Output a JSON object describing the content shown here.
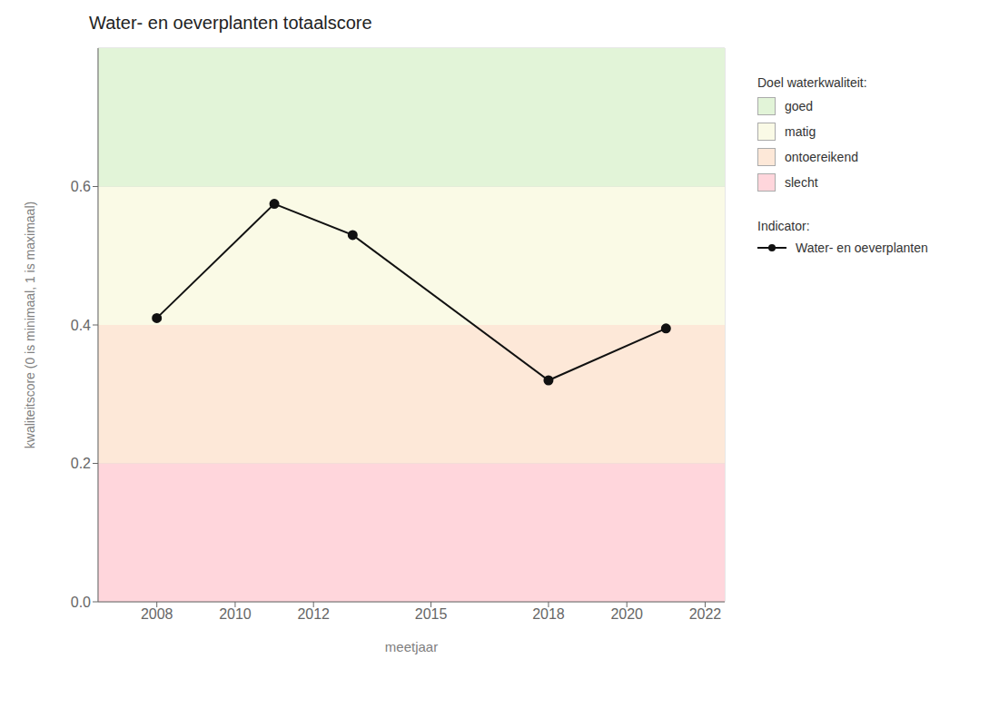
{
  "chart_data": {
    "type": "line",
    "title": "Water- en oeverplanten totaalscore",
    "x_label": "meetjaar",
    "y_label": "kwaliteitscore (0 is minimaal, 1 is maximaal)",
    "x": [
      2008,
      2011,
      2013,
      2018,
      2021
    ],
    "series": [
      {
        "name": "Water- en oeverplanten",
        "color": "#111111",
        "marker": "o",
        "values": [
          0.41,
          0.575,
          0.53,
          0.32,
          0.395
        ]
      }
    ],
    "xlim": [
      2006.5,
      2022.5
    ],
    "ylim": [
      0.0,
      0.8
    ],
    "xticks": [
      2008,
      2010,
      2012,
      2015,
      2018,
      2020,
      2022
    ],
    "yticks": [
      {
        "value": 0.0,
        "label": "0.0"
      },
      {
        "value": 0.2,
        "label": "0.2"
      },
      {
        "value": 0.4,
        "label": "0.4"
      },
      {
        "value": 0.6,
        "label": "0.6"
      }
    ],
    "bands": [
      {
        "from": 0.0,
        "to": 0.2,
        "color": "#ffd6dc",
        "label": "slecht"
      },
      {
        "from": 0.2,
        "to": 0.4,
        "color": "#fde8d8",
        "label": "ontoereikend"
      },
      {
        "from": 0.4,
        "to": 0.6,
        "color": "#fafae6",
        "label": "matig"
      },
      {
        "from": 0.6,
        "to": 0.8,
        "color": "#e2f4d8",
        "label": "goed"
      }
    ],
    "bands_title": "Doel waterkwaliteit:",
    "series_title": "Indicator:",
    "grid": true,
    "legend": "right"
  }
}
